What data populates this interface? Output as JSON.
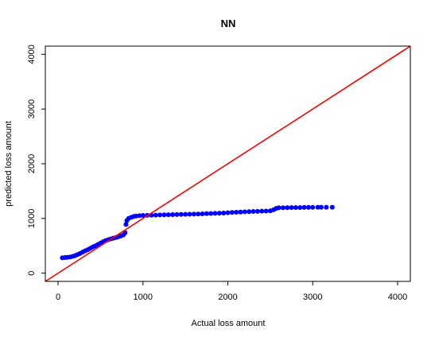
{
  "chart_data": {
    "type": "scatter",
    "title": "NN",
    "xlabel": "Actual loss amount",
    "ylabel": "predicted loss amount",
    "xlim": [
      -150,
      4150
    ],
    "ylim": [
      -150,
      4150
    ],
    "xticks": [
      "0",
      "1000",
      "2000",
      "3000",
      "4000"
    ],
    "yticks": [
      "0",
      "1000",
      "2000",
      "3000",
      "4000"
    ],
    "grid": false,
    "colors": {
      "points": "#0000ff",
      "reference_line": "#ff0000"
    },
    "reference_line": {
      "x": [
        -150,
        4150
      ],
      "y": [
        -150,
        4150
      ]
    },
    "series": [
      {
        "x": [
          50,
          80,
          110,
          140,
          170,
          200,
          230,
          260,
          290,
          320,
          350,
          380,
          410,
          440,
          470,
          500,
          530,
          560,
          590,
          620,
          650,
          680,
          710,
          740,
          770,
          790,
          800,
          810,
          830,
          860,
          890,
          920,
          960,
          1000,
          1050,
          1100,
          1150,
          1200,
          1250,
          1300,
          1350,
          1400,
          1450,
          1500,
          1550,
          1600,
          1650,
          1700,
          1750,
          1800,
          1850,
          1900,
          1950,
          2000,
          2050,
          2100,
          2150,
          2200,
          2250,
          2300,
          2350,
          2400,
          2450,
          2500,
          2540,
          2570,
          2600,
          2650,
          2700,
          2750,
          2800,
          2850,
          2900,
          2950,
          3000,
          3060,
          3100,
          3160,
          3230
        ],
        "y": [
          280,
          285,
          290,
          295,
          305,
          320,
          340,
          360,
          385,
          410,
          430,
          455,
          480,
          500,
          525,
          550,
          575,
          595,
          610,
          625,
          640,
          650,
          665,
          680,
          700,
          740,
          890,
          960,
          1000,
          1020,
          1035,
          1045,
          1050,
          1055,
          1058,
          1060,
          1062,
          1064,
          1066,
          1068,
          1070,
          1072,
          1074,
          1076,
          1078,
          1080,
          1082,
          1085,
          1088,
          1090,
          1093,
          1096,
          1100,
          1105,
          1110,
          1114,
          1118,
          1122,
          1125,
          1128,
          1130,
          1133,
          1136,
          1140,
          1160,
          1185,
          1195,
          1195,
          1198,
          1200,
          1200,
          1200,
          1202,
          1203,
          1203,
          1205,
          1205,
          1205,
          1205
        ]
      }
    ]
  }
}
